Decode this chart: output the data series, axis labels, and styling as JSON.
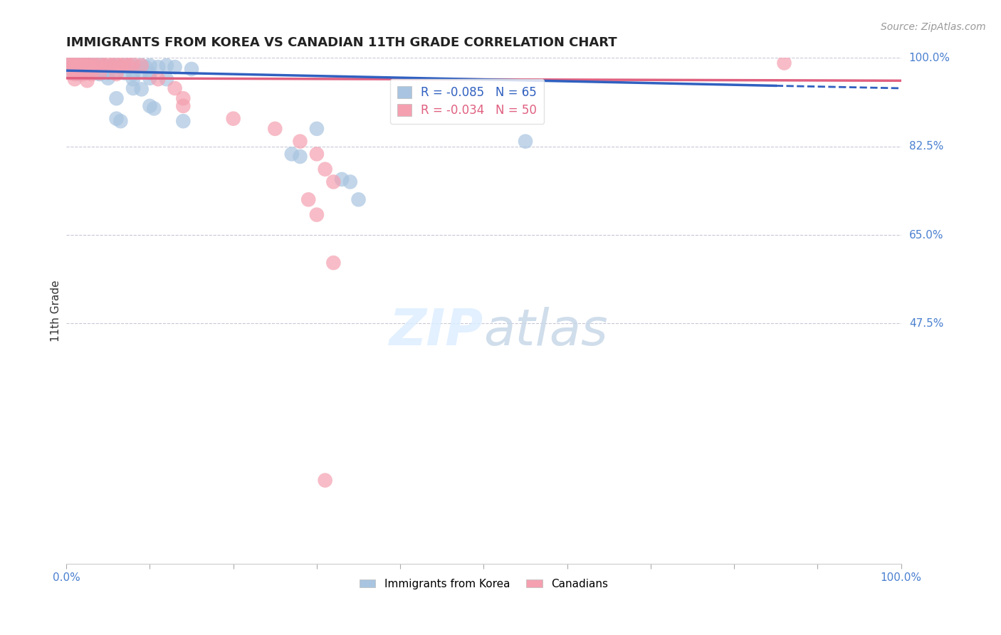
{
  "title": "IMMIGRANTS FROM KOREA VS CANADIAN 11TH GRADE CORRELATION CHART",
  "source": "Source: ZipAtlas.com",
  "ylabel": "11th Grade",
  "xlabel": "",
  "xlim": [
    0.0,
    1.0
  ],
  "ylim": [
    0.0,
    1.0
  ],
  "hlines": [
    1.0,
    0.825,
    0.65,
    0.475
  ],
  "hline_labels": [
    "100.0%",
    "82.5%",
    "65.0%",
    "47.5%"
  ],
  "blue_R": -0.085,
  "blue_N": 65,
  "pink_R": -0.034,
  "pink_N": 50,
  "blue_color": "#a8c4e0",
  "pink_color": "#f4a0b0",
  "blue_line_color": "#3060c0",
  "pink_line_color": "#e06080",
  "blue_line_solid": [
    [
      0.0,
      0.975
    ],
    [
      0.85,
      0.945
    ]
  ],
  "blue_line_dash": [
    [
      0.85,
      0.945
    ],
    [
      1.0,
      0.94
    ]
  ],
  "pink_line": [
    [
      0.0,
      0.96
    ],
    [
      1.0,
      0.955
    ]
  ],
  "blue_scatter": [
    [
      0.005,
      0.99
    ],
    [
      0.008,
      0.985
    ],
    [
      0.01,
      0.988
    ],
    [
      0.012,
      0.982
    ],
    [
      0.015,
      0.99
    ],
    [
      0.018,
      0.985
    ],
    [
      0.02,
      0.988
    ],
    [
      0.022,
      0.983
    ],
    [
      0.025,
      0.99
    ],
    [
      0.028,
      0.985
    ],
    [
      0.03,
      0.988
    ],
    [
      0.035,
      0.985
    ],
    [
      0.038,
      0.982
    ],
    [
      0.04,
      0.988
    ],
    [
      0.045,
      0.985
    ],
    [
      0.05,
      0.982
    ],
    [
      0.055,
      0.985
    ],
    [
      0.06,
      0.985
    ],
    [
      0.065,
      0.982
    ],
    [
      0.07,
      0.985
    ],
    [
      0.075,
      0.982
    ],
    [
      0.08,
      0.985
    ],
    [
      0.085,
      0.982
    ],
    [
      0.09,
      0.985
    ],
    [
      0.095,
      0.982
    ],
    [
      0.1,
      0.985
    ],
    [
      0.11,
      0.982
    ],
    [
      0.12,
      0.985
    ],
    [
      0.13,
      0.982
    ],
    [
      0.15,
      0.978
    ],
    [
      0.005,
      0.972
    ],
    [
      0.01,
      0.97
    ],
    [
      0.015,
      0.968
    ],
    [
      0.02,
      0.972
    ],
    [
      0.025,
      0.97
    ],
    [
      0.03,
      0.972
    ],
    [
      0.035,
      0.97
    ],
    [
      0.04,
      0.968
    ],
    [
      0.045,
      0.972
    ],
    [
      0.05,
      0.97
    ],
    [
      0.06,
      0.972
    ],
    [
      0.07,
      0.97
    ],
    [
      0.08,
      0.968
    ],
    [
      0.09,
      0.972
    ],
    [
      0.1,
      0.97
    ],
    [
      0.05,
      0.96
    ],
    [
      0.08,
      0.958
    ],
    [
      0.1,
      0.96
    ],
    [
      0.12,
      0.958
    ],
    [
      0.08,
      0.94
    ],
    [
      0.09,
      0.938
    ],
    [
      0.06,
      0.92
    ],
    [
      0.1,
      0.905
    ],
    [
      0.105,
      0.9
    ],
    [
      0.06,
      0.88
    ],
    [
      0.065,
      0.875
    ],
    [
      0.14,
      0.875
    ],
    [
      0.3,
      0.86
    ],
    [
      0.55,
      0.835
    ],
    [
      0.27,
      0.81
    ],
    [
      0.28,
      0.805
    ],
    [
      0.33,
      0.76
    ],
    [
      0.34,
      0.755
    ],
    [
      0.35,
      0.72
    ]
  ],
  "pink_scatter": [
    [
      0.003,
      0.99
    ],
    [
      0.006,
      0.988
    ],
    [
      0.009,
      0.985
    ],
    [
      0.012,
      0.988
    ],
    [
      0.015,
      0.985
    ],
    [
      0.018,
      0.988
    ],
    [
      0.021,
      0.985
    ],
    [
      0.024,
      0.988
    ],
    [
      0.027,
      0.985
    ],
    [
      0.03,
      0.988
    ],
    [
      0.035,
      0.985
    ],
    [
      0.04,
      0.988
    ],
    [
      0.045,
      0.985
    ],
    [
      0.05,
      0.988
    ],
    [
      0.055,
      0.985
    ],
    [
      0.06,
      0.988
    ],
    [
      0.065,
      0.985
    ],
    [
      0.07,
      0.988
    ],
    [
      0.075,
      0.985
    ],
    [
      0.08,
      0.988
    ],
    [
      0.09,
      0.985
    ],
    [
      0.005,
      0.97
    ],
    [
      0.01,
      0.968
    ],
    [
      0.015,
      0.97
    ],
    [
      0.02,
      0.968
    ],
    [
      0.025,
      0.97
    ],
    [
      0.03,
      0.968
    ],
    [
      0.04,
      0.97
    ],
    [
      0.06,
      0.968
    ],
    [
      0.01,
      0.958
    ],
    [
      0.025,
      0.955
    ],
    [
      0.11,
      0.958
    ],
    [
      0.13,
      0.94
    ],
    [
      0.14,
      0.92
    ],
    [
      0.14,
      0.905
    ],
    [
      0.2,
      0.88
    ],
    [
      0.25,
      0.86
    ],
    [
      0.28,
      0.835
    ],
    [
      0.3,
      0.81
    ],
    [
      0.31,
      0.78
    ],
    [
      0.32,
      0.755
    ],
    [
      0.86,
      0.99
    ],
    [
      0.29,
      0.72
    ],
    [
      0.3,
      0.69
    ],
    [
      0.32,
      0.595
    ],
    [
      0.31,
      0.165
    ]
  ]
}
